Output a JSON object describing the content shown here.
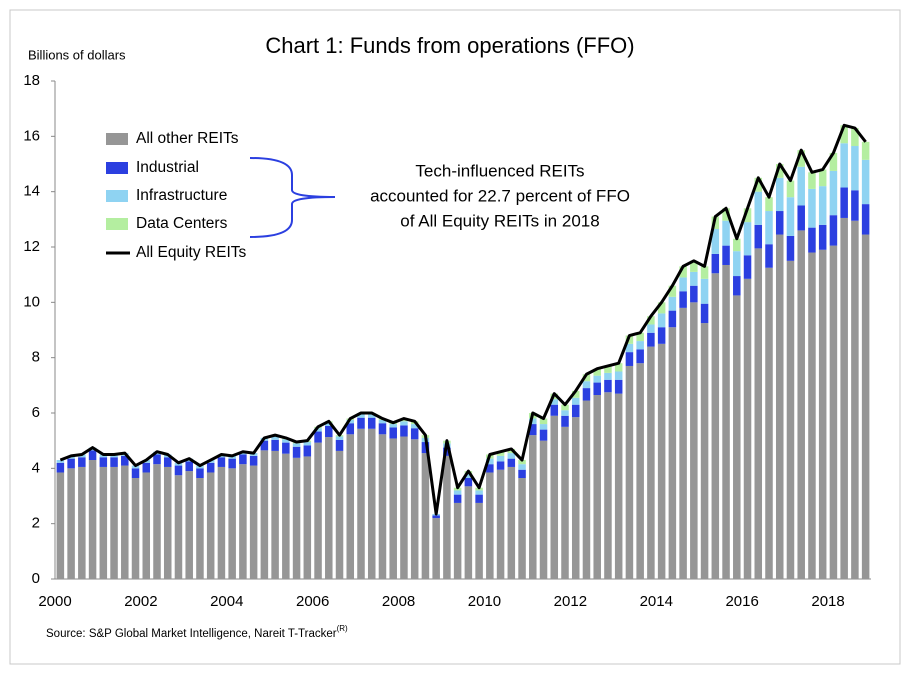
{
  "chart_data": {
    "type": "stacked_bar_line",
    "title": "Chart 1: Funds from operations (FFO)",
    "y_label": "Billions of dollars",
    "source": "Source: S&P Global Market Intelligence, Nareit T-Tracker",
    "source_superscript": "(R)",
    "annotation": [
      "Tech-influenced REITs",
      "accounted for 22.7 percent of FFO",
      "of All Equity REITs in 2018"
    ],
    "categories": [
      "2000",
      null,
      null,
      null,
      null,
      null,
      null,
      null,
      "2002",
      null,
      null,
      null,
      null,
      null,
      null,
      null,
      "2004",
      null,
      null,
      null,
      null,
      null,
      null,
      null,
      "2006",
      null,
      null,
      null,
      null,
      null,
      null,
      null,
      "2008",
      null,
      null,
      null,
      null,
      null,
      null,
      null,
      "2010",
      null,
      null,
      null,
      null,
      null,
      null,
      null,
      "2012",
      null,
      null,
      null,
      null,
      null,
      null,
      null,
      "2014",
      null,
      null,
      null,
      null,
      null,
      null,
      null,
      "2016",
      null,
      null,
      null,
      null,
      null,
      null,
      null,
      "2018",
      null,
      null,
      null
    ],
    "ylim": [
      0,
      18
    ],
    "yticks": [
      0,
      2,
      4,
      6,
      8,
      10,
      12,
      14,
      16,
      18
    ],
    "series": [
      {
        "name": "All other REITs",
        "color": "#969696",
        "values": [
          3.85,
          4.0,
          4.05,
          4.3,
          4.05,
          4.05,
          4.1,
          3.65,
          3.85,
          4.15,
          4.05,
          3.75,
          3.9,
          3.65,
          3.85,
          4.05,
          4.0,
          4.15,
          4.1,
          4.65,
          4.63,
          4.53,
          4.38,
          4.43,
          4.93,
          5.13,
          4.63,
          5.23,
          5.43,
          5.43,
          5.23,
          5.08,
          5.15,
          5.05,
          4.55,
          2.2,
          4.45,
          2.75,
          3.35,
          2.75,
          3.85,
          3.95,
          4.05,
          3.65,
          5.2,
          5.0,
          5.9,
          5.5,
          5.85,
          6.45,
          6.65,
          6.75,
          6.7,
          7.7,
          7.8,
          8.4,
          8.5,
          9.1,
          9.8,
          10.0,
          9.25,
          11.05,
          11.35,
          10.25,
          10.85,
          11.95,
          11.25,
          12.45,
          11.5,
          12.6,
          11.8,
          11.9,
          12.05,
          13.05,
          12.95,
          12.45
        ]
      },
      {
        "name": "Industrial",
        "color": "#2b3fe0",
        "values": [
          0.35,
          0.35,
          0.35,
          0.35,
          0.35,
          0.35,
          0.35,
          0.35,
          0.35,
          0.35,
          0.35,
          0.35,
          0.35,
          0.35,
          0.35,
          0.35,
          0.35,
          0.35,
          0.35,
          0.35,
          0.4,
          0.4,
          0.4,
          0.4,
          0.4,
          0.4,
          0.4,
          0.4,
          0.4,
          0.4,
          0.4,
          0.4,
          0.4,
          0.4,
          0.4,
          0.1,
          0.3,
          0.3,
          0.3,
          0.3,
          0.3,
          0.3,
          0.3,
          0.3,
          0.4,
          0.4,
          0.4,
          0.4,
          0.45,
          0.45,
          0.45,
          0.45,
          0.5,
          0.5,
          0.5,
          0.5,
          0.6,
          0.6,
          0.6,
          0.6,
          0.7,
          0.7,
          0.7,
          0.7,
          0.85,
          0.85,
          0.85,
          0.85,
          0.9,
          0.9,
          0.9,
          0.9,
          1.1,
          1.1,
          1.1,
          1.1
        ]
      },
      {
        "name": "Infrastructure",
        "color": "#8fd3f2",
        "values": [
          0.1,
          0.1,
          0.1,
          0.1,
          0.1,
          0.1,
          0.1,
          0.1,
          0.1,
          0.1,
          0.1,
          0.1,
          0.1,
          0.1,
          0.1,
          0.1,
          0.1,
          0.1,
          0.1,
          0.1,
          0.12,
          0.12,
          0.12,
          0.12,
          0.12,
          0.12,
          0.12,
          0.12,
          0.12,
          0.12,
          0.12,
          0.12,
          0.15,
          0.15,
          0.15,
          0.05,
          0.15,
          0.15,
          0.15,
          0.15,
          0.2,
          0.2,
          0.2,
          0.2,
          0.2,
          0.2,
          0.2,
          0.2,
          0.25,
          0.25,
          0.25,
          0.25,
          0.3,
          0.3,
          0.3,
          0.3,
          0.5,
          0.5,
          0.5,
          0.5,
          0.9,
          0.9,
          0.9,
          0.9,
          1.2,
          1.2,
          1.2,
          1.2,
          1.4,
          1.4,
          1.4,
          1.4,
          1.6,
          1.6,
          1.6,
          1.6
        ]
      },
      {
        "name": "Data Centers",
        "color": "#b4eea0",
        "values": [
          0,
          0,
          0,
          0,
          0,
          0,
          0,
          0,
          0,
          0,
          0,
          0,
          0,
          0,
          0,
          0,
          0,
          0,
          0,
          0,
          0.05,
          0.05,
          0.05,
          0.05,
          0.05,
          0.05,
          0.05,
          0.05,
          0.05,
          0.05,
          0.05,
          0.05,
          0.1,
          0.1,
          0.1,
          0,
          0.1,
          0.1,
          0.1,
          0.1,
          0.15,
          0.15,
          0.15,
          0.15,
          0.2,
          0.2,
          0.2,
          0.2,
          0.25,
          0.25,
          0.25,
          0.25,
          0.3,
          0.3,
          0.3,
          0.3,
          0.4,
          0.4,
          0.4,
          0.4,
          0.45,
          0.45,
          0.45,
          0.45,
          0.5,
          0.5,
          0.5,
          0.5,
          0.6,
          0.6,
          0.6,
          0.6,
          0.65,
          0.65,
          0.65,
          0.65
        ]
      }
    ],
    "line": {
      "name": "All Equity REITs",
      "color": "#000000",
      "values": [
        4.3,
        4.45,
        4.5,
        4.75,
        4.5,
        4.5,
        4.55,
        4.1,
        4.3,
        4.6,
        4.5,
        4.2,
        4.35,
        4.1,
        4.3,
        4.5,
        4.45,
        4.6,
        4.55,
        5.1,
        5.2,
        5.1,
        4.95,
        5.0,
        5.5,
        5.7,
        5.2,
        5.8,
        6.0,
        6.0,
        5.8,
        5.65,
        5.8,
        5.7,
        5.2,
        2.35,
        5.0,
        3.3,
        3.9,
        3.3,
        4.5,
        4.6,
        4.7,
        4.3,
        6.0,
        5.8,
        6.7,
        6.3,
        6.8,
        7.4,
        7.6,
        7.7,
        7.8,
        8.8,
        8.9,
        9.5,
        10.0,
        10.6,
        11.3,
        11.5,
        11.3,
        13.1,
        13.4,
        12.3,
        13.4,
        14.5,
        13.8,
        15.0,
        14.4,
        15.5,
        14.7,
        14.8,
        15.4,
        16.4,
        16.3,
        15.8
      ]
    }
  }
}
